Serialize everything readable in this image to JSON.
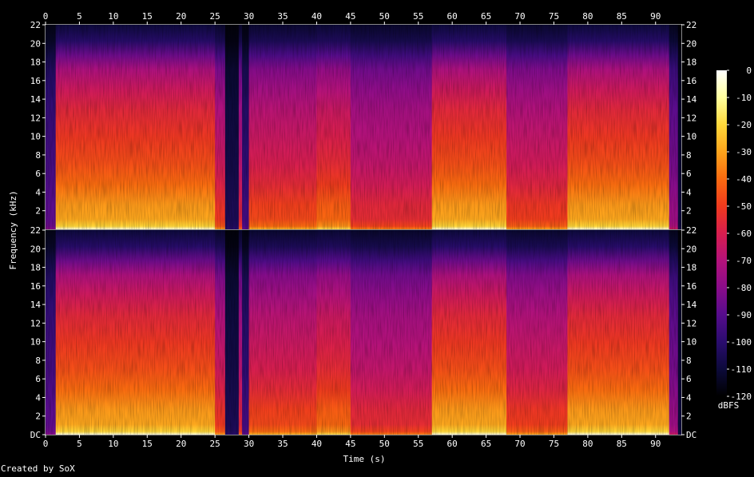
{
  "credit": "Created by SoX",
  "chart_data": {
    "type": "heatmap",
    "subtype": "spectrogram",
    "title": "",
    "xlabel": "Time (s)",
    "ylabel": "Frequency (kHz)",
    "x_ticks": [
      "0",
      "5",
      "10",
      "15",
      "20",
      "25",
      "30",
      "35",
      "40",
      "45",
      "50",
      "55",
      "60",
      "65",
      "70",
      "75",
      "80",
      "85",
      "90"
    ],
    "x_range": [
      0,
      93.8
    ],
    "y_ticks_top": [
      "2",
      "4",
      "6",
      "8",
      "10",
      "12",
      "14",
      "16",
      "18",
      "20",
      "22"
    ],
    "y_ticks_bottom": [
      "DC",
      "2",
      "4",
      "6",
      "8",
      "10",
      "12",
      "14",
      "16",
      "18",
      "20",
      "22"
    ],
    "y_range_khz": [
      0,
      22.05
    ],
    "channels": 2,
    "colorbar": {
      "label": "dBFS",
      "ticks": [
        "0",
        "-10",
        "-20",
        "-30",
        "-40",
        "-50",
        "-60",
        "-70",
        "-80",
        "-90",
        "-100",
        "-110",
        "-120"
      ],
      "range": [
        -120,
        0
      ],
      "colors": [
        "#000000",
        "#0c0a3a",
        "#2a0c6e",
        "#560c8c",
        "#8a0c8a",
        "#b4127a",
        "#d81e4e",
        "#f03a1e",
        "#fa6a10",
        "#fda41c",
        "#fed83a",
        "#ffff9e",
        "#ffffff"
      ]
    },
    "segments": [
      {
        "t": [
          0,
          1.5
        ],
        "level": 0.25
      },
      {
        "t": [
          1.5,
          25
        ],
        "level": 0.72
      },
      {
        "t": [
          25,
          26.5
        ],
        "level": 0.55
      },
      {
        "t": [
          26.5,
          28.5
        ],
        "level": 0.12
      },
      {
        "t": [
          28.5,
          29
        ],
        "level": 0.5
      },
      {
        "t": [
          29,
          30
        ],
        "level": 0.2
      },
      {
        "t": [
          30,
          40
        ],
        "level": 0.58
      },
      {
        "t": [
          40,
          45
        ],
        "level": 0.63
      },
      {
        "t": [
          45,
          57
        ],
        "level": 0.52
      },
      {
        "t": [
          57,
          68
        ],
        "level": 0.72
      },
      {
        "t": [
          68,
          77
        ],
        "level": 0.56
      },
      {
        "t": [
          77,
          92
        ],
        "level": 0.72
      },
      {
        "t": [
          92,
          93.3
        ],
        "level": 0.35
      },
      {
        "t": [
          93.3,
          93.8
        ],
        "level": 0.08
      }
    ]
  }
}
